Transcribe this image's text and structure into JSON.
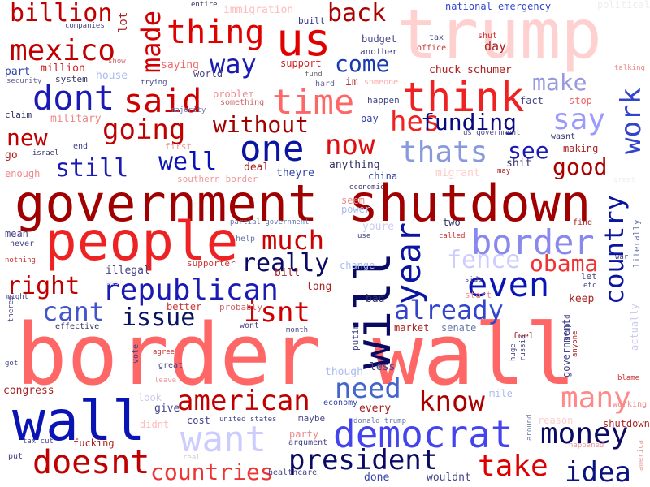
{
  "words": [
    {
      "id": "border-wall",
      "text": "border wall",
      "color": "#ff6666"
    },
    {
      "id": "government-shutdown",
      "text": "government shutdown",
      "color": "#a00000"
    },
    {
      "id": "trump",
      "text": "trump",
      "color": "#ffd0d0"
    },
    {
      "id": "people",
      "text": "people",
      "color": "#ee2222"
    },
    {
      "id": "wall",
      "text": "wall",
      "color": "#0a14b4"
    },
    {
      "id": "will",
      "text": "will",
      "color": "#0a0a64"
    },
    {
      "id": "us",
      "text": "us",
      "color": "#e00000"
    },
    {
      "id": "think",
      "text": "think",
      "color": "#ee2222"
    },
    {
      "id": "democrat",
      "text": "democrat",
      "color": "#4444ee"
    },
    {
      "id": "want",
      "text": "want",
      "color": "#ccccff"
    },
    {
      "id": "border",
      "text": "border",
      "color": "#8888ee"
    },
    {
      "id": "time",
      "text": "time",
      "color": "#ff6666"
    },
    {
      "id": "dont",
      "text": "dont",
      "color": "#1a1ab4"
    },
    {
      "id": "said",
      "text": "said",
      "color": "#cc0000"
    },
    {
      "id": "one",
      "text": "one",
      "color": "#0a14a0"
    },
    {
      "id": "thing",
      "text": "thing",
      "color": "#e00000"
    },
    {
      "id": "mexico",
      "text": "mexico",
      "color": "#c00000"
    },
    {
      "id": "billion",
      "text": "billion",
      "color": "#c00000"
    },
    {
      "id": "made",
      "text": "made",
      "color": "#d00000"
    },
    {
      "id": "back",
      "text": "back",
      "color": "#aa0000"
    },
    {
      "id": "way",
      "text": "way",
      "color": "#1a1ab4"
    },
    {
      "id": "come",
      "text": "come",
      "color": "#1a3ab4"
    },
    {
      "id": "going",
      "text": "going",
      "color": "#c00000"
    },
    {
      "id": "new",
      "text": "new",
      "color": "#c00000"
    },
    {
      "id": "still",
      "text": "still",
      "color": "#1a1ab4"
    },
    {
      "id": "well",
      "text": "well",
      "color": "#0a14b4"
    },
    {
      "id": "without",
      "text": "without",
      "color": "#a00000"
    },
    {
      "id": "now",
      "text": "now",
      "color": "#dd1111"
    },
    {
      "id": "hes",
      "text": "hes",
      "color": "#ee2222"
    },
    {
      "id": "funding",
      "text": "funding",
      "color": "#0a0a80"
    },
    {
      "id": "say",
      "text": "say",
      "color": "#9999ff"
    },
    {
      "id": "make",
      "text": "make",
      "color": "#9999dd"
    },
    {
      "id": "work",
      "text": "work",
      "color": "#3344cc"
    },
    {
      "id": "thats",
      "text": "thats",
      "color": "#8899dd"
    },
    {
      "id": "see",
      "text": "see",
      "color": "#1a1ab4"
    },
    {
      "id": "good",
      "text": "good",
      "color": "#aa0000"
    },
    {
      "id": "much",
      "text": "much",
      "color": "#cc0000"
    },
    {
      "id": "year",
      "text": "year",
      "color": "#0a14a0"
    },
    {
      "id": "really",
      "text": "really",
      "color": "#0a0a64"
    },
    {
      "id": "fence",
      "text": "fence",
      "color": "#ccccff"
    },
    {
      "id": "obama",
      "text": "obama",
      "color": "#ee3333"
    },
    {
      "id": "even",
      "text": "even",
      "color": "#0a14b4"
    },
    {
      "id": "country",
      "text": "country",
      "color": "#0a14a0"
    },
    {
      "id": "republican",
      "text": "republican",
      "color": "#1a1ab4"
    },
    {
      "id": "right",
      "text": "right",
      "color": "#c00000"
    },
    {
      "id": "cant",
      "text": "cant",
      "color": "#4455cc"
    },
    {
      "id": "issue",
      "text": "issue",
      "color": "#0a1464"
    },
    {
      "id": "isnt",
      "text": "isnt",
      "color": "#cc0000"
    },
    {
      "id": "already",
      "text": "already",
      "color": "#3344cc"
    },
    {
      "id": "need",
      "text": "need",
      "color": "#4466cc"
    },
    {
      "id": "know",
      "text": "know",
      "color": "#aa0000"
    },
    {
      "id": "american",
      "text": "american",
      "color": "#c00000"
    },
    {
      "id": "many",
      "text": "many",
      "color": "#ff8888"
    },
    {
      "id": "money",
      "text": "money",
      "color": "#0a0a64"
    },
    {
      "id": "doesnt",
      "text": "doesnt",
      "color": "#c00000"
    },
    {
      "id": "president",
      "text": "president",
      "color": "#0a0a64"
    },
    {
      "id": "countries",
      "text": "countries",
      "color": "#ee3333"
    },
    {
      "id": "take",
      "text": "take",
      "color": "#dd0000"
    },
    {
      "id": "idea",
      "text": "idea",
      "color": "#0a1480"
    },
    {
      "id": "national-emergency",
      "text": "national emergency",
      "color": "#3344cc"
    },
    {
      "id": "political",
      "text": "political",
      "color": "#eeeeee"
    },
    {
      "id": "immigration",
      "text": "immigration",
      "color": "#ffbbbb"
    },
    {
      "id": "entire",
      "text": "entire",
      "color": "#333366"
    },
    {
      "id": "companies",
      "text": "companies",
      "color": "#444488"
    },
    {
      "id": "lot",
      "text": "lot",
      "color": "#aa2222"
    },
    {
      "id": "built",
      "text": "built",
      "color": "#333388"
    },
    {
      "id": "budget",
      "text": "budget",
      "color": "#444488"
    },
    {
      "id": "another",
      "text": "another",
      "color": "#444488"
    },
    {
      "id": "tax",
      "text": "tax",
      "color": "#444488"
    },
    {
      "id": "office",
      "text": "office",
      "color": "#cc3333"
    },
    {
      "id": "shut",
      "text": "shut",
      "color": "#cc3333"
    },
    {
      "id": "day",
      "text": "day",
      "color": "#aa2222"
    },
    {
      "id": "chuck-schumer",
      "text": "chuck schumer",
      "color": "#aa2222"
    },
    {
      "id": "talking",
      "text": "talking",
      "color": "#ee8888"
    },
    {
      "id": "part",
      "text": "part",
      "color": "#3344aa"
    },
    {
      "id": "million",
      "text": "million",
      "color": "#cc2222"
    },
    {
      "id": "show",
      "text": "show",
      "color": "#cc6666"
    },
    {
      "id": "world",
      "text": "world",
      "color": "#444488"
    },
    {
      "id": "saying",
      "text": "saying",
      "color": "#ee6666"
    },
    {
      "id": "support",
      "text": "support",
      "color": "#cc2222"
    },
    {
      "id": "fund",
      "text": "fund",
      "color": "#666666"
    },
    {
      "id": "hard",
      "text": "hard",
      "color": "#666699"
    },
    {
      "id": "im",
      "text": "im",
      "color": "#aa2222"
    },
    {
      "id": "someone",
      "text": "someone",
      "color": "#ffaaaa"
    },
    {
      "id": "security",
      "text": "security",
      "color": "#666699"
    },
    {
      "id": "system",
      "text": "system",
      "color": "#333366"
    },
    {
      "id": "house",
      "text": "house",
      "color": "#aabbee"
    },
    {
      "id": "trying",
      "text": "trying",
      "color": "#444488"
    },
    {
      "id": "majority",
      "text": "majority",
      "color": "#6677aa"
    },
    {
      "id": "problem",
      "text": "problem",
      "color": "#ee8888"
    },
    {
      "id": "something",
      "text": "something",
      "color": "#cc6666"
    },
    {
      "id": "happen",
      "text": "happen",
      "color": "#444488"
    },
    {
      "id": "fact",
      "text": "fact",
      "color": "#444488"
    },
    {
      "id": "stop",
      "text": "stop",
      "color": "#ee6666"
    },
    {
      "id": "claim",
      "text": "claim",
      "color": "#333366"
    },
    {
      "id": "military",
      "text": "military",
      "color": "#ee8888"
    },
    {
      "id": "pay",
      "text": "pay",
      "color": "#3344aa"
    },
    {
      "id": "us-government",
      "text": "us government",
      "color": "#444488"
    },
    {
      "id": "wasnt",
      "text": "wasnt",
      "color": "#333366"
    },
    {
      "id": "go",
      "text": "go",
      "color": "#aa2222"
    },
    {
      "id": "israel",
      "text": "israel",
      "color": "#333366"
    },
    {
      "id": "end",
      "text": "end",
      "color": "#444488"
    },
    {
      "id": "first",
      "text": "first",
      "color": "#ee9999"
    },
    {
      "id": "making",
      "text": "making",
      "color": "#aa2222"
    },
    {
      "id": "enough",
      "text": "enough",
      "color": "#ee8888"
    },
    {
      "id": "deal",
      "text": "deal",
      "color": "#aa2222"
    },
    {
      "id": "southern-border",
      "text": "southern border",
      "color": "#ee9999"
    },
    {
      "id": "theyre",
      "text": "theyre",
      "color": "#3344aa"
    },
    {
      "id": "anything",
      "text": "anything",
      "color": "#333366"
    },
    {
      "id": "china",
      "text": "china",
      "color": "#3344aa"
    },
    {
      "id": "migrant",
      "text": "migrant",
      "color": "#ffcccc"
    },
    {
      "id": "shit",
      "text": "shit",
      "color": "#333366"
    },
    {
      "id": "may",
      "text": "may",
      "color": "#aa2222"
    },
    {
      "id": "great-r",
      "text": "great",
      "color": "#eeeeee"
    },
    {
      "id": "economic",
      "text": "economic",
      "color": "#333366"
    },
    {
      "id": "seem",
      "text": "seem",
      "color": "#ee8888"
    },
    {
      "id": "power",
      "text": "power",
      "color": "#aabbee"
    },
    {
      "id": "partial-government",
      "text": "partial government",
      "color": "#6677aa"
    },
    {
      "id": "youre",
      "text": "youre",
      "color": "#ccccee"
    },
    {
      "id": "two",
      "text": "two",
      "color": "#333366"
    },
    {
      "id": "find",
      "text": "find",
      "color": "#aa2222"
    },
    {
      "id": "called",
      "text": "called",
      "color": "#cc3333"
    },
    {
      "id": "mean",
      "text": "mean",
      "color": "#444488"
    },
    {
      "id": "never",
      "text": "never",
      "color": "#444488"
    },
    {
      "id": "help",
      "text": "help",
      "color": "#6677aa"
    },
    {
      "id": "use",
      "text": "use",
      "color": "#444488"
    },
    {
      "id": "war",
      "text": "war",
      "color": "#444488"
    },
    {
      "id": "literally",
      "text": "literally",
      "color": "#6677aa"
    },
    {
      "id": "nothing",
      "text": "nothing",
      "color": "#cc3333"
    },
    {
      "id": "illegal",
      "text": "illegal",
      "color": "#444488"
    },
    {
      "id": "supporter",
      "text": "supporter",
      "color": "#cc3333"
    },
    {
      "id": "change",
      "text": "change",
      "color": "#aabbee"
    },
    {
      "id": "let",
      "text": "let",
      "color": "#444488"
    },
    {
      "id": "etc",
      "text": "etc",
      "color": "#444488"
    },
    {
      "id": "bill",
      "text": "bill",
      "color": "#aa2222"
    },
    {
      "id": "best",
      "text": "best",
      "color": "#eeeeee"
    },
    {
      "id": "long",
      "text": "long",
      "color": "#aa2222"
    },
    {
      "id": "side",
      "text": "side",
      "color": "#444488"
    },
    {
      "id": "might",
      "text": "might",
      "color": "#444488"
    },
    {
      "id": "better",
      "text": "better",
      "color": "#cc3333"
    },
    {
      "id": "probably",
      "text": "probably",
      "color": "#cc6666"
    },
    {
      "id": "bad",
      "text": "bad",
      "color": "#333366"
    },
    {
      "id": "start",
      "text": "start",
      "color": "#ee8888"
    },
    {
      "id": "keep",
      "text": "keep",
      "color": "#aa2222"
    },
    {
      "id": "theres",
      "text": "theres",
      "color": "#444488"
    },
    {
      "id": "effective",
      "text": "effective",
      "color": "#333366"
    },
    {
      "id": "wont",
      "text": "wont",
      "color": "#444488"
    },
    {
      "id": "putin",
      "text": "putin",
      "color": "#444488"
    },
    {
      "id": "market",
      "text": "market",
      "color": "#aa2222"
    },
    {
      "id": "senate",
      "text": "senate",
      "color": "#6677aa"
    },
    {
      "id": "month",
      "text": "month",
      "color": "#444488"
    },
    {
      "id": "feel",
      "text": "feel",
      "color": "#aa2222"
    },
    {
      "id": "stupid",
      "text": "stupid",
      "color": "#444488"
    },
    {
      "id": "actually",
      "text": "actually",
      "color": "#ccccee"
    },
    {
      "id": "got",
      "text": "got",
      "color": "#444488"
    },
    {
      "id": "agree",
      "text": "agree",
      "color": "#cc3333"
    },
    {
      "id": "great",
      "text": "great",
      "color": "#444488"
    },
    {
      "id": "vote",
      "text": "vote",
      "color": "#444488"
    },
    {
      "id": "though",
      "text": "though",
      "color": "#aabbee"
    },
    {
      "id": "less",
      "text": "less",
      "color": "#444488"
    },
    {
      "id": "huge",
      "text": "huge",
      "color": "#444488"
    },
    {
      "id": "russia",
      "text": "russia",
      "color": "#444488"
    },
    {
      "id": "government",
      "text": "government",
      "color": "#444488"
    },
    {
      "id": "anyone",
      "text": "anyone",
      "color": "#aa2222"
    },
    {
      "id": "blame",
      "text": "blame",
      "color": "#cc3333"
    },
    {
      "id": "leave",
      "text": "leave",
      "color": "#ee9999"
    },
    {
      "id": "look",
      "text": "look",
      "color": "#ccccee"
    },
    {
      "id": "congress",
      "text": "congress",
      "color": "#aa2222"
    },
    {
      "id": "give",
      "text": "give",
      "color": "#444488"
    },
    {
      "id": "economy",
      "text": "economy",
      "color": "#3344aa"
    },
    {
      "id": "every",
      "text": "every",
      "color": "#aa2222"
    },
    {
      "id": "mile",
      "text": "mile",
      "color": "#aabbee"
    },
    {
      "id": "working",
      "text": "working",
      "color": "#ee8888"
    },
    {
      "id": "didnt",
      "text": "didnt",
      "color": "#ffbbbb"
    },
    {
      "id": "cost",
      "text": "cost",
      "color": "#444488"
    },
    {
      "id": "united-states",
      "text": "united states",
      "color": "#444488"
    },
    {
      "id": "maybe",
      "text": "maybe",
      "color": "#444488"
    },
    {
      "id": "donald-trump",
      "text": "donald trump",
      "color": "#6677aa"
    },
    {
      "id": "around",
      "text": "around",
      "color": "#6677aa"
    },
    {
      "id": "reason",
      "text": "reason",
      "color": "#ffcccc"
    },
    {
      "id": "shutdown-small",
      "text": "shutdown",
      "color": "#aa2222"
    },
    {
      "id": "happened",
      "text": "happened",
      "color": "#ee9999"
    },
    {
      "id": "america",
      "text": "america",
      "color": "#ee9999"
    },
    {
      "id": "tax-cut",
      "text": "tax cut",
      "color": "#444488"
    },
    {
      "id": "party",
      "text": "party",
      "color": "#ee8888"
    },
    {
      "id": "argument",
      "text": "argument",
      "color": "#444488"
    },
    {
      "id": "fucking",
      "text": "fucking",
      "color": "#aa2222"
    },
    {
      "id": "real",
      "text": "real",
      "color": "#cccccc"
    },
    {
      "id": "healthcare",
      "text": "healthcare",
      "color": "#444488"
    },
    {
      "id": "put",
      "text": "put",
      "color": "#444488"
    },
    {
      "id": "done",
      "text": "done",
      "color": "#3344aa"
    },
    {
      "id": "wouldnt",
      "text": "wouldnt",
      "color": "#444488"
    }
  ]
}
